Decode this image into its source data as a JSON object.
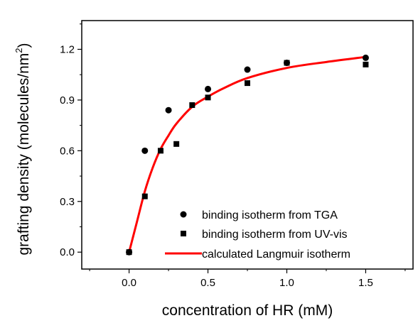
{
  "chart_data": {
    "type": "scatter",
    "title": "",
    "xlabel": "concentration of HR (mM)",
    "ylabel_main": "grafting density (molecules/nm",
    "ylabel_sup": "2",
    "ylabel_close": ")",
    "xlim": [
      -0.3,
      1.8
    ],
    "ylim": [
      -0.1,
      1.37
    ],
    "x_ticks": [
      0.0,
      0.5,
      1.0,
      1.5
    ],
    "x_tick_labels": [
      "0.0",
      "0.5",
      "1.0",
      "1.5"
    ],
    "y_ticks": [
      0.0,
      0.3,
      0.6,
      0.9,
      1.2
    ],
    "y_tick_labels": [
      "0.0",
      "0.3",
      "0.6",
      "0.9",
      "1.2"
    ],
    "grid": false,
    "legend_position": "bottom-right",
    "series": [
      {
        "name": "binding isotherm from TGA",
        "marker": "circle",
        "color": "#000000",
        "x": [
          0.0,
          0.1,
          0.25,
          0.5,
          0.75,
          1.0,
          1.5
        ],
        "y": [
          0.0,
          0.6,
          0.84,
          0.965,
          1.08,
          1.12,
          1.15
        ]
      },
      {
        "name": "binding isotherm from UV-vis",
        "marker": "square",
        "color": "#000000",
        "x": [
          0.0,
          0.1,
          0.2,
          0.3,
          0.4,
          0.5,
          0.75,
          1.0,
          1.5
        ],
        "y": [
          0.0,
          0.33,
          0.6,
          0.64,
          0.87,
          0.915,
          1.0,
          1.12,
          1.11
        ]
      },
      {
        "name": "calculated Langmuir isotherm",
        "marker": "line",
        "color": "#ff0000",
        "x": [
          0.0,
          0.05,
          0.1,
          0.15,
          0.2,
          0.25,
          0.3,
          0.4,
          0.5,
          0.6,
          0.75,
          1.0,
          1.25,
          1.5
        ],
        "y": [
          0.0,
          0.18,
          0.36,
          0.5,
          0.61,
          0.69,
          0.76,
          0.86,
          0.92,
          0.97,
          1.03,
          1.09,
          1.125,
          1.155
        ]
      }
    ]
  }
}
